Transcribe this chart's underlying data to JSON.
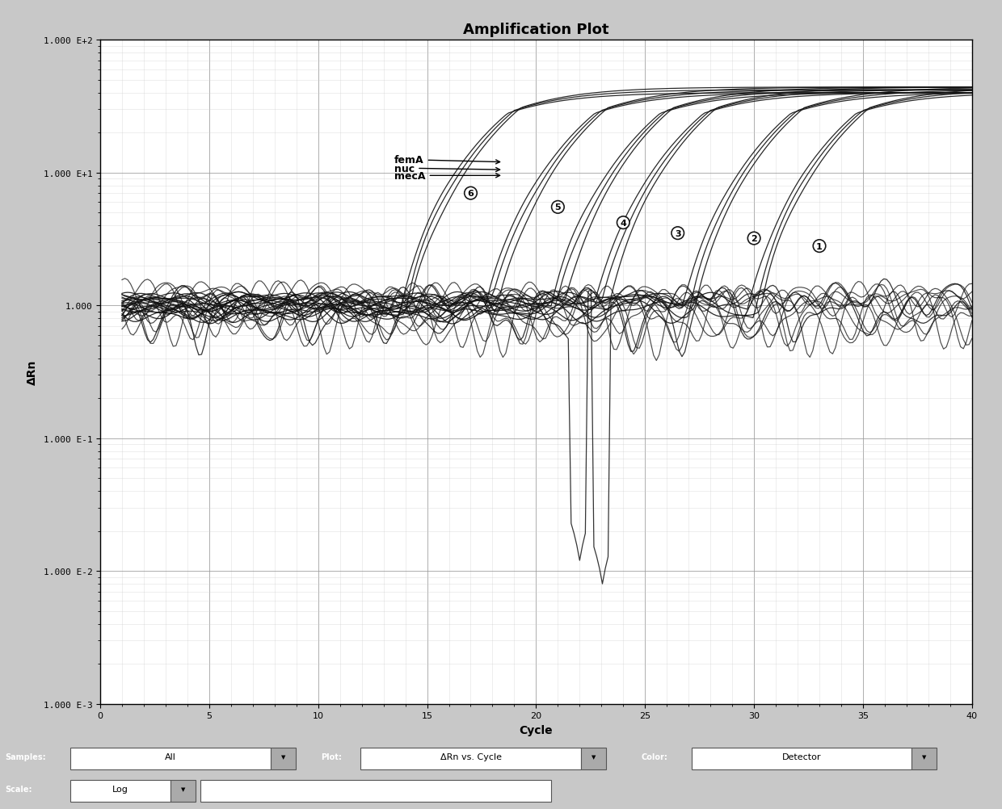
{
  "title": "Amplification Plot",
  "xlabel": "Cycle",
  "ylabel": "ΔRn",
  "xlim": [
    0,
    40
  ],
  "bg_color": "#c8c8c8",
  "plot_bg_color": "#ffffff",
  "grid_major_color": "#999999",
  "grid_minor_color": "#cccccc",
  "line_color": "#111111",
  "legend_labels": [
    "femA",
    "nuc",
    "mecA"
  ],
  "circled_numbers": [
    6,
    5,
    4,
    3,
    2,
    1
  ],
  "ct_values": [
    17,
    21,
    24,
    26,
    30,
    33
  ],
  "footer_bg": "#888888",
  "footer_text1": "All",
  "footer_text2": "ΔRn vs. Cycle",
  "footer_text3": "Detector",
  "footer_text4": "Log",
  "title_fontsize": 13,
  "axis_label_fontsize": 10,
  "tick_fontsize": 8
}
